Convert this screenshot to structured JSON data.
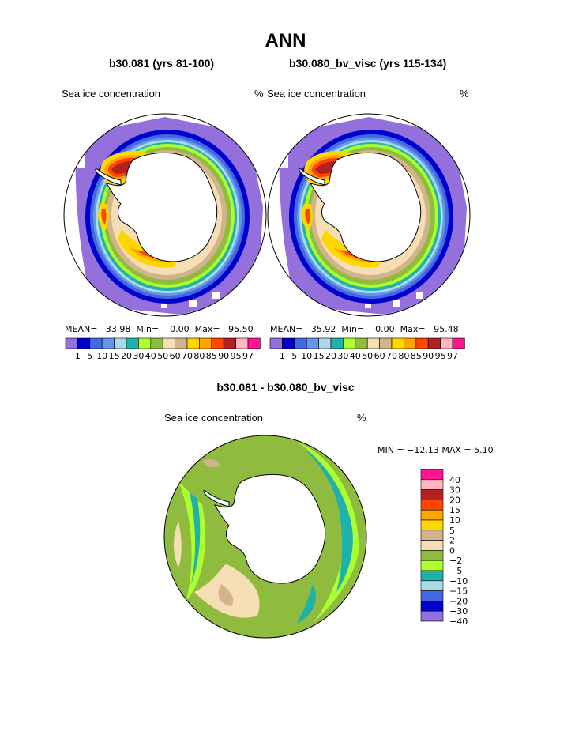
{
  "title": "ANN",
  "panels": [
    {
      "case": "b30.081 (yrs 81-100)",
      "variable": "Sea ice concentration",
      "units": "%",
      "mean_label": "MEAN=",
      "mean": "33.98",
      "min_label": "Min=",
      "min": "0.00",
      "max_label": "Max=",
      "max": "95.50"
    },
    {
      "case": "b30.080_bv_visc (yrs 115-134)",
      "variable": "Sea ice concentration",
      "units": "%",
      "mean_label": "MEAN=",
      "mean": "35.92",
      "min_label": "Min=",
      "min": "0.00",
      "max_label": "Max=",
      "max": "95.48"
    }
  ],
  "diff_panel": {
    "title": "b30.081 - b30.080_bv_visc",
    "variable": "Sea ice concentration",
    "units": "%",
    "stats": "MIN = −12.13 MAX =    5.10"
  },
  "conc_legend": {
    "labels": [
      "1",
      "5",
      "10",
      "15",
      "20",
      "30",
      "40",
      "50",
      "60",
      "70",
      "80",
      "85",
      "90",
      "95",
      "97"
    ],
    "colors": [
      "#9370db",
      "#0000cd",
      "#4169e1",
      "#6495ed",
      "#add8e6",
      "#20b2aa",
      "#adff2f",
      "#8fbc3f",
      "#f5deb3",
      "#d2b48c",
      "#ffd700",
      "#ffa500",
      "#ff4500",
      "#b22222",
      "#ffb6c1",
      "#ff1493"
    ]
  },
  "diff_legend": {
    "labels": [
      "40",
      "30",
      "20",
      "15",
      "10",
      "5",
      "2",
      "0",
      "−2",
      "−5",
      "−10",
      "−15",
      "−20",
      "−30",
      "−40"
    ],
    "colors": [
      "#ff1493",
      "#ffb6c1",
      "#b22222",
      "#ff4500",
      "#ffa500",
      "#ffd700",
      "#d2b48c",
      "#f5deb3",
      "#8fbc3f",
      "#adff2f",
      "#20b2aa",
      "#add8e6",
      "#4169e1",
      "#0000cd",
      "#9370db"
    ]
  }
}
